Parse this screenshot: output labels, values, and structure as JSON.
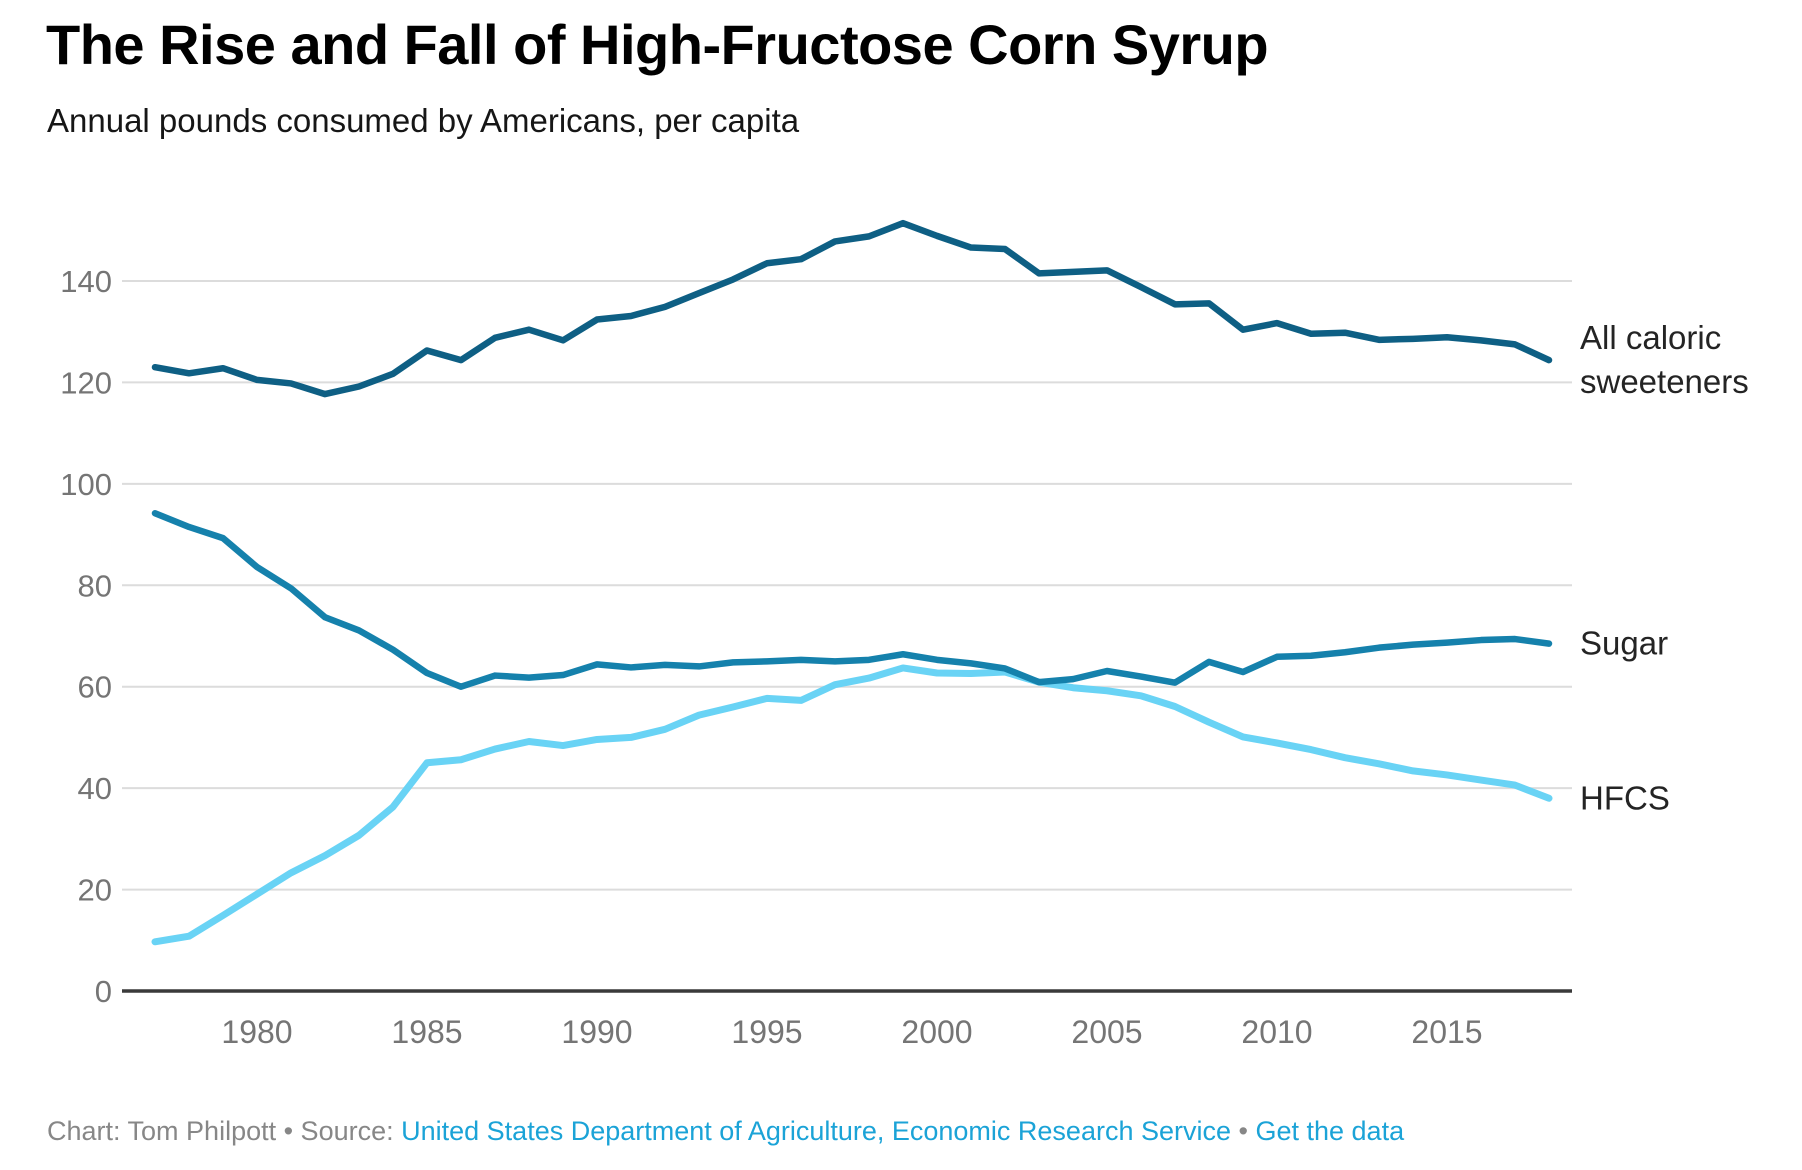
{
  "chart_data": {
    "type": "line",
    "title": "The Rise and Fall of High-Fructose Corn Syrup",
    "subtitle": "Annual pounds consumed by Americans, per capita",
    "x": [
      1977,
      1978,
      1979,
      1980,
      1981,
      1982,
      1983,
      1984,
      1985,
      1986,
      1987,
      1988,
      1989,
      1990,
      1991,
      1992,
      1993,
      1994,
      1995,
      1996,
      1997,
      1998,
      1999,
      2000,
      2001,
      2002,
      2003,
      2004,
      2005,
      2006,
      2007,
      2008,
      2009,
      2010,
      2011,
      2012,
      2013,
      2014,
      2015,
      2016,
      2017,
      2018
    ],
    "series": [
      {
        "name": "All caloric sweeteners",
        "label_lines": [
          "All caloric",
          "sweeteners"
        ],
        "color": "#0e5f84",
        "stroke_width": 6.5,
        "values": [
          123.0,
          121.8,
          122.8,
          120.5,
          119.8,
          117.7,
          119.2,
          121.7,
          126.3,
          124.4,
          128.8,
          130.4,
          128.3,
          132.4,
          133.1,
          134.9,
          137.6,
          140.3,
          143.5,
          144.3,
          147.8,
          148.8,
          151.4,
          148.9,
          146.6,
          146.3,
          141.5,
          141.8,
          142.1,
          138.8,
          135.4,
          135.6,
          130.4,
          131.7,
          129.6,
          129.8,
          128.4,
          128.6,
          128.9,
          128.3,
          127.5,
          124.4
        ]
      },
      {
        "name": "Sugar",
        "label_lines": [
          "Sugar"
        ],
        "color": "#1581ac",
        "stroke_width": 6.5,
        "values": [
          94.2,
          91.5,
          89.3,
          83.6,
          79.4,
          73.7,
          71.1,
          67.3,
          62.7,
          60.0,
          62.2,
          61.8,
          62.3,
          64.4,
          63.8,
          64.3,
          64.0,
          64.8,
          65.0,
          65.3,
          65.0,
          65.3,
          66.4,
          65.3,
          64.6,
          63.6,
          60.9,
          61.5,
          63.1,
          62.0,
          60.8,
          64.9,
          62.9,
          65.9,
          66.1,
          66.8,
          67.7,
          68.3,
          68.7,
          69.2,
          69.4,
          68.5
        ]
      },
      {
        "name": "HFCS",
        "label_lines": [
          "HFCS"
        ],
        "color": "#69d3f5",
        "stroke_width": 7,
        "values": [
          9.7,
          10.8,
          14.9,
          19.1,
          23.3,
          26.7,
          30.7,
          36.3,
          45.0,
          45.6,
          47.7,
          49.2,
          48.4,
          49.6,
          50.0,
          51.6,
          54.4,
          56.0,
          57.7,
          57.3,
          60.4,
          61.7,
          63.7,
          62.7,
          62.6,
          62.9,
          60.9,
          59.8,
          59.2,
          58.2,
          56.1,
          53.0,
          50.1,
          48.9,
          47.6,
          46.0,
          44.8,
          43.4,
          42.6,
          41.6,
          40.6,
          38.0
        ]
      }
    ],
    "y_ticks": [
      0,
      20,
      40,
      60,
      80,
      100,
      120,
      140
    ],
    "x_ticks": [
      1980,
      1985,
      1990,
      1995,
      2000,
      2005,
      2010,
      2015
    ],
    "ylim": [
      0,
      155
    ],
    "xlabel": "",
    "ylabel": "",
    "grid": true,
    "legend_position": "right-of-line-ends",
    "axis_colors": {
      "gridline": "#dcdcdc",
      "baseline": "#3a3a3a",
      "tick_label": "#757575",
      "series_label": "#242424"
    }
  },
  "footer": {
    "prefix": "Chart: Tom Philpott • Source: ",
    "source_link_label": "United States Department of Agriculture, Economic Research Service",
    "separator": " • ",
    "get_data_label": "Get the data",
    "link_color": "#1ba3d7"
  }
}
